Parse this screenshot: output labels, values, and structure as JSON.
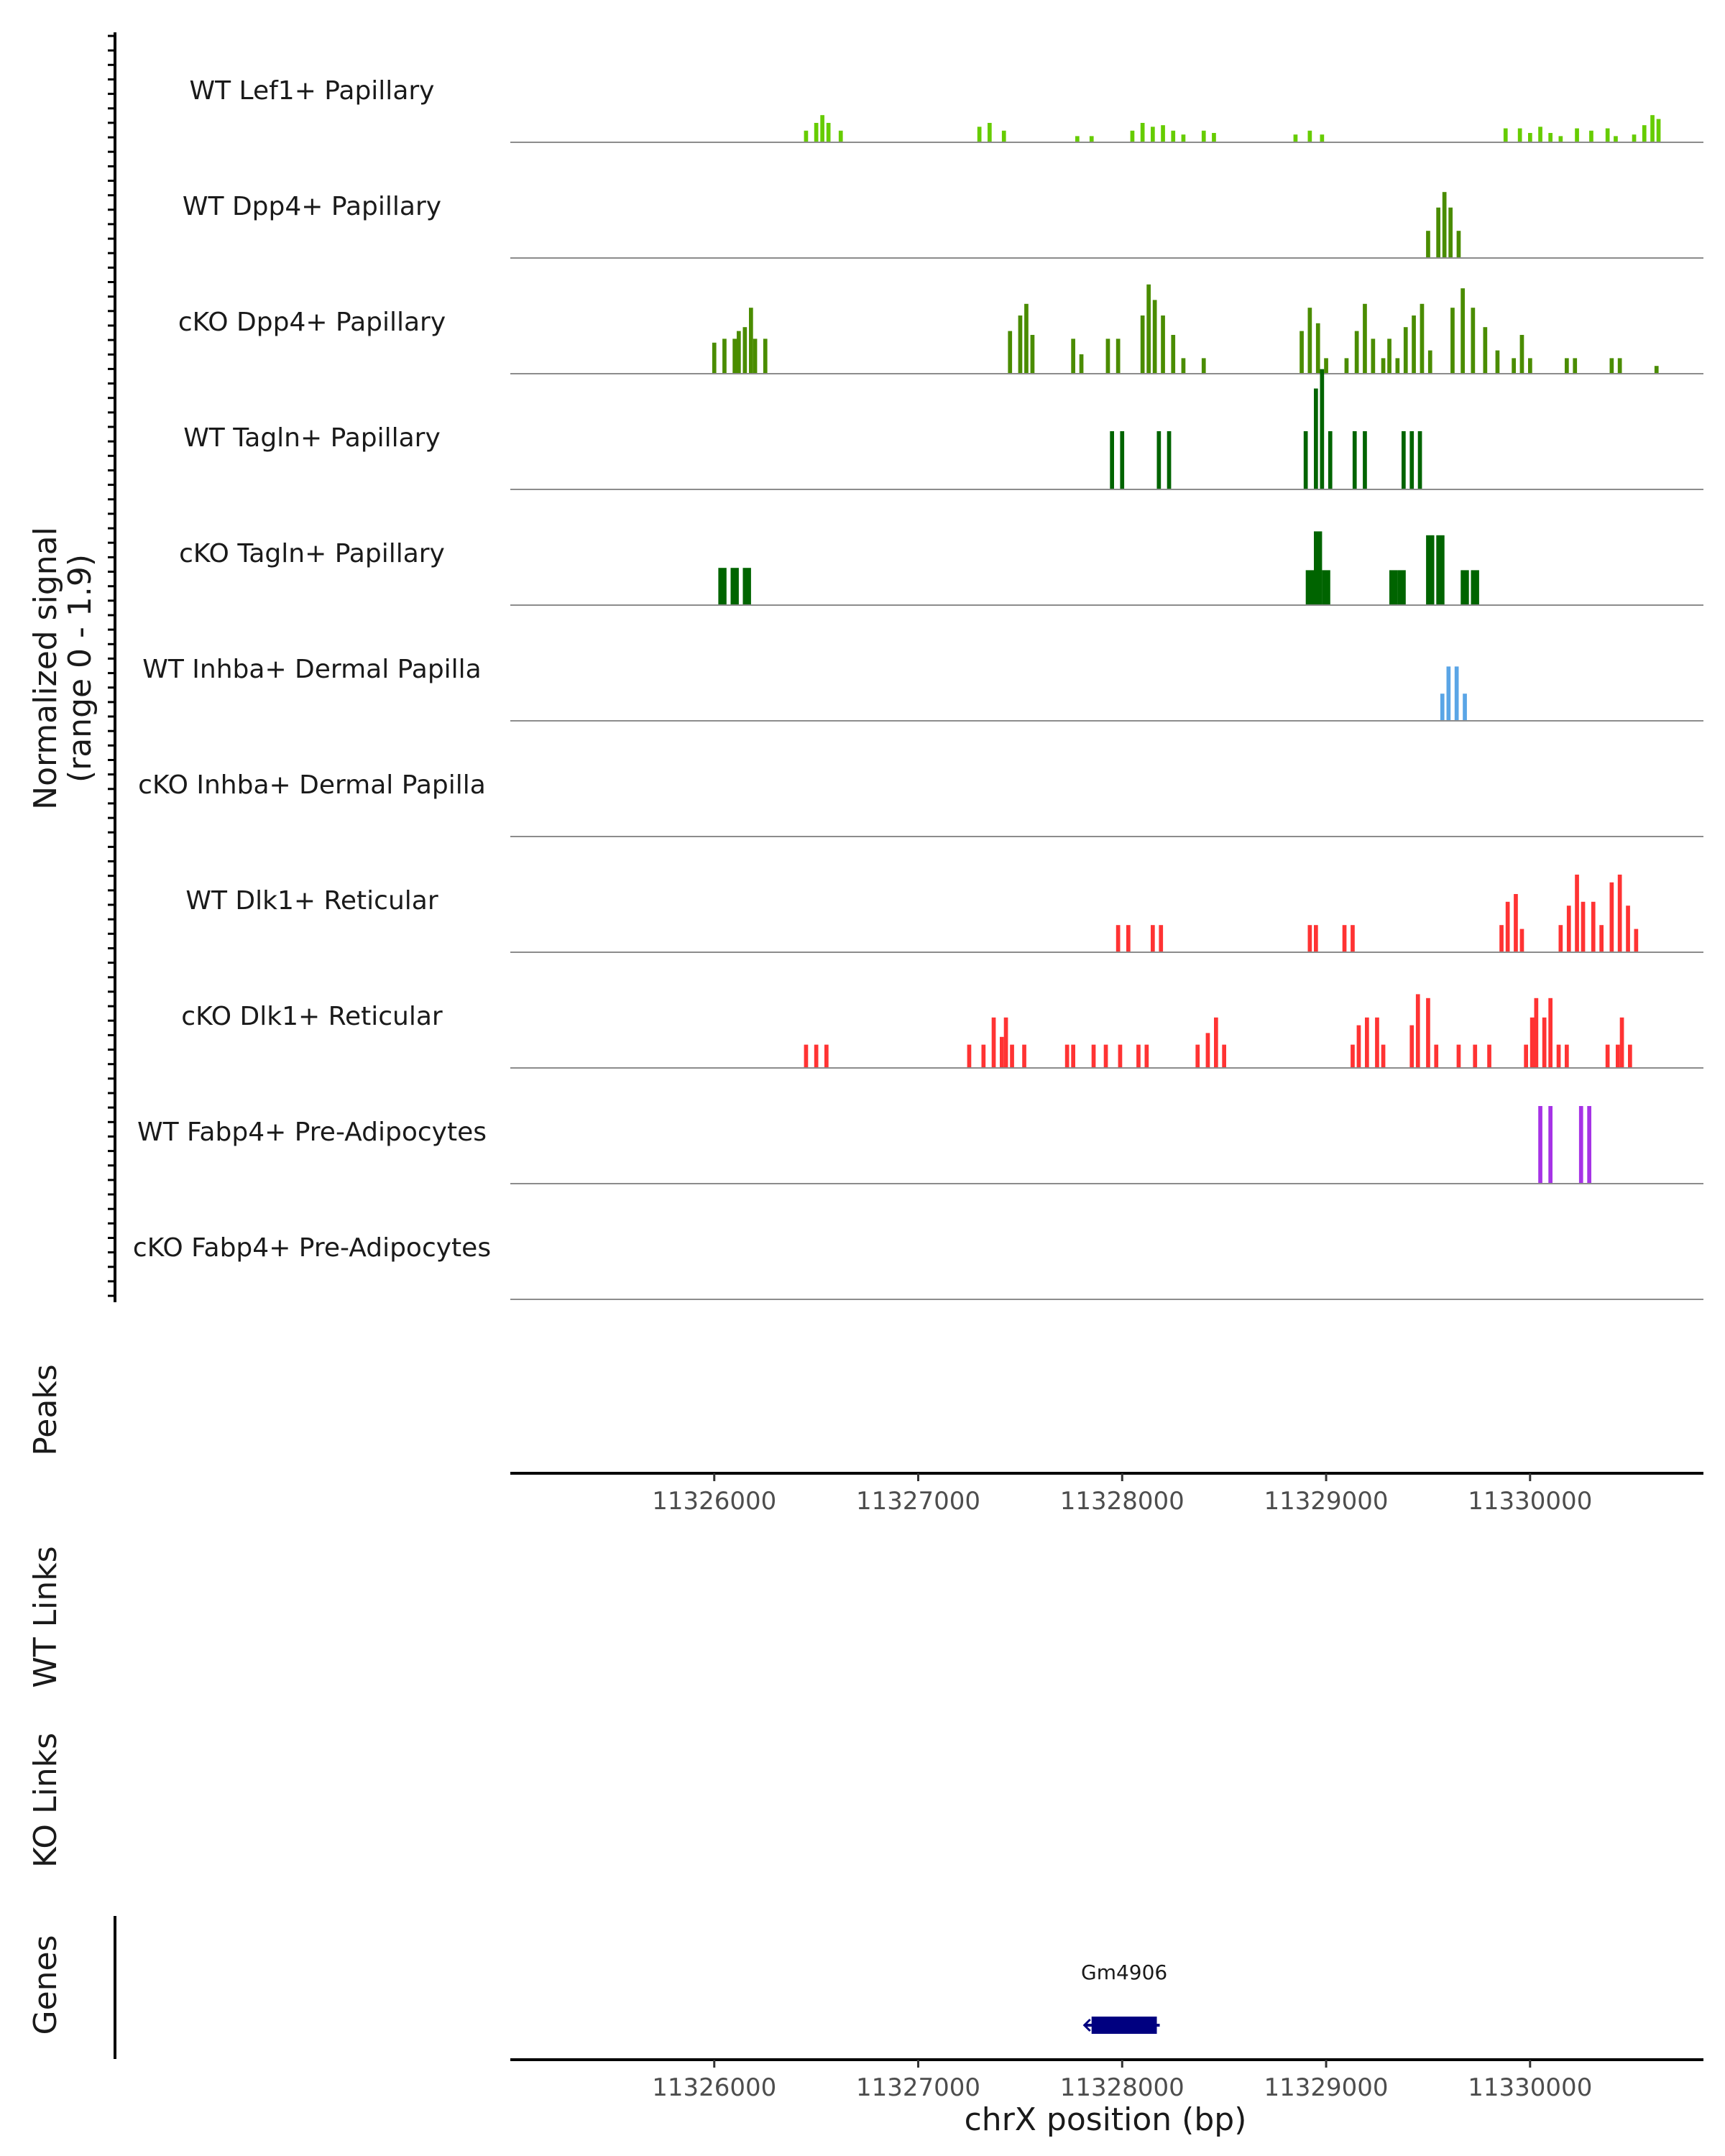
{
  "chart_data": {
    "type": "area",
    "title": "",
    "y_axis_title": "Normalized signal",
    "y_axis_subtitle": "(range 0 - 1.9)",
    "ylim": [
      0,
      1.9
    ],
    "chromosome": "chrX",
    "xlim": [
      11325000,
      11330850
    ],
    "x_ticks": [
      11326000,
      11327000,
      11328000,
      11329000,
      11330000
    ],
    "x_tick_labels": [
      "11326000",
      "11327000",
      "11328000",
      "11329000",
      "11330000"
    ],
    "xlabel": "chrX position (bp)",
    "section_labels": {
      "peaks": "Peaks",
      "wt_links": "WT Links",
      "ko_links": "KO Links",
      "genes": "Genes"
    },
    "series": [
      {
        "name": "WT Lef1+ Papillary",
        "color": "#66cc00",
        "bin": 20,
        "points": [
          [
            11326450,
            0.15
          ],
          [
            11326500,
            0.25
          ],
          [
            11326530,
            0.35
          ],
          [
            11326560,
            0.25
          ],
          [
            11326620,
            0.15
          ],
          [
            11327300,
            0.2
          ],
          [
            11327350,
            0.25
          ],
          [
            11327420,
            0.15
          ],
          [
            11327780,
            0.08
          ],
          [
            11327850,
            0.08
          ],
          [
            11328050,
            0.15
          ],
          [
            11328100,
            0.25
          ],
          [
            11328150,
            0.2
          ],
          [
            11328200,
            0.22
          ],
          [
            11328250,
            0.15
          ],
          [
            11328300,
            0.1
          ],
          [
            11328400,
            0.15
          ],
          [
            11328450,
            0.12
          ],
          [
            11328850,
            0.1
          ],
          [
            11328920,
            0.15
          ],
          [
            11328980,
            0.1
          ],
          [
            11329880,
            0.18
          ],
          [
            11329950,
            0.18
          ],
          [
            11330000,
            0.12
          ],
          [
            11330050,
            0.2
          ],
          [
            11330100,
            0.12
          ],
          [
            11330150,
            0.08
          ],
          [
            11330230,
            0.18
          ],
          [
            11330300,
            0.15
          ],
          [
            11330380,
            0.18
          ],
          [
            11330420,
            0.08
          ],
          [
            11330510,
            0.1
          ],
          [
            11330560,
            0.22
          ],
          [
            11330600,
            0.35
          ],
          [
            11330630,
            0.3
          ]
        ]
      },
      {
        "name": "WT Dpp4+ Papillary",
        "color": "#4a8c00",
        "bin": 20,
        "points": [
          [
            11329500,
            0.35
          ],
          [
            11329550,
            0.65
          ],
          [
            11329580,
            0.85
          ],
          [
            11329610,
            0.65
          ],
          [
            11329650,
            0.35
          ]
        ]
      },
      {
        "name": "cKO Dpp4+ Papillary",
        "color": "#4a8c00",
        "bin": 20,
        "points": [
          [
            11326000,
            0.4
          ],
          [
            11326050,
            0.45
          ],
          [
            11326100,
            0.45
          ],
          [
            11326120,
            0.55
          ],
          [
            11326150,
            0.6
          ],
          [
            11326180,
            0.85
          ],
          [
            11326200,
            0.45
          ],
          [
            11326250,
            0.45
          ],
          [
            11327450,
            0.55
          ],
          [
            11327500,
            0.75
          ],
          [
            11327530,
            0.9
          ],
          [
            11327560,
            0.5
          ],
          [
            11327760,
            0.45
          ],
          [
            11327800,
            0.25
          ],
          [
            11327930,
            0.45
          ],
          [
            11327980,
            0.45
          ],
          [
            11328100,
            0.75
          ],
          [
            11328130,
            1.15
          ],
          [
            11328160,
            0.95
          ],
          [
            11328200,
            0.75
          ],
          [
            11328250,
            0.5
          ],
          [
            11328300,
            0.2
          ],
          [
            11328400,
            0.2
          ],
          [
            11328880,
            0.55
          ],
          [
            11328920,
            0.85
          ],
          [
            11328960,
            0.65
          ],
          [
            11329000,
            0.2
          ],
          [
            11329100,
            0.2
          ],
          [
            11329150,
            0.55
          ],
          [
            11329190,
            0.9
          ],
          [
            11329230,
            0.45
          ],
          [
            11329280,
            0.2
          ],
          [
            11329310,
            0.45
          ],
          [
            11329350,
            0.2
          ],
          [
            11329390,
            0.6
          ],
          [
            11329430,
            0.75
          ],
          [
            11329470,
            0.9
          ],
          [
            11329510,
            0.3
          ],
          [
            11329620,
            0.85
          ],
          [
            11329670,
            1.1
          ],
          [
            11329720,
            0.85
          ],
          [
            11329780,
            0.6
          ],
          [
            11329840,
            0.3
          ],
          [
            11329920,
            0.2
          ],
          [
            11329960,
            0.5
          ],
          [
            11330000,
            0.2
          ],
          [
            11330180,
            0.2
          ],
          [
            11330220,
            0.2
          ],
          [
            11330400,
            0.2
          ],
          [
            11330440,
            0.2
          ],
          [
            11330620,
            0.1
          ]
        ]
      },
      {
        "name": "WT Tagln+ Papillary",
        "color": "#006400",
        "bin": 20,
        "points": [
          [
            11327950,
            0.75
          ],
          [
            11328000,
            0.75
          ],
          [
            11328180,
            0.75
          ],
          [
            11328230,
            0.75
          ],
          [
            11328900,
            0.75
          ],
          [
            11328950,
            1.3
          ],
          [
            11328980,
            1.55
          ],
          [
            11329020,
            0.75
          ],
          [
            11329140,
            0.75
          ],
          [
            11329190,
            0.75
          ],
          [
            11329380,
            0.75
          ],
          [
            11329420,
            0.75
          ],
          [
            11329460,
            0.75
          ]
        ]
      },
      {
        "name": "cKO Tagln+ Papillary",
        "color": "#006400",
        "bin": 40,
        "points": [
          [
            11326040,
            0.48
          ],
          [
            11326100,
            0.48
          ],
          [
            11326160,
            0.48
          ],
          [
            11328920,
            0.45
          ],
          [
            11328960,
            0.95
          ],
          [
            11329000,
            0.45
          ],
          [
            11329330,
            0.45
          ],
          [
            11329370,
            0.45
          ],
          [
            11329510,
            0.9
          ],
          [
            11329560,
            0.9
          ],
          [
            11329680,
            0.45
          ],
          [
            11329730,
            0.45
          ]
        ]
      },
      {
        "name": "WT Inhba+ Dermal Papilla",
        "color": "#5aa5e6",
        "bin": 20,
        "points": [
          [
            11329570,
            0.35
          ],
          [
            11329600,
            0.7
          ],
          [
            11329640,
            0.7
          ],
          [
            11329680,
            0.35
          ]
        ]
      },
      {
        "name": "cKO Inhba+ Dermal Papilla",
        "color": "#5aa5e6",
        "bin": 20,
        "points": []
      },
      {
        "name": "WT Dlk1+ Reticular",
        "color": "#ff3333",
        "bin": 20,
        "points": [
          [
            11327980,
            0.35
          ],
          [
            11328030,
            0.35
          ],
          [
            11328150,
            0.35
          ],
          [
            11328190,
            0.35
          ],
          [
            11328920,
            0.35
          ],
          [
            11328950,
            0.35
          ],
          [
            11329090,
            0.35
          ],
          [
            11329130,
            0.35
          ],
          [
            11329860,
            0.35
          ],
          [
            11329890,
            0.65
          ],
          [
            11329930,
            0.75
          ],
          [
            11329960,
            0.3
          ],
          [
            11330150,
            0.35
          ],
          [
            11330190,
            0.6
          ],
          [
            11330230,
            1.0
          ],
          [
            11330260,
            0.65
          ],
          [
            11330310,
            0.65
          ],
          [
            11330350,
            0.35
          ],
          [
            11330400,
            0.9
          ],
          [
            11330440,
            1.0
          ],
          [
            11330480,
            0.6
          ],
          [
            11330520,
            0.3
          ]
        ]
      },
      {
        "name": "cKO Dlk1+ Reticular",
        "color": "#ff3333",
        "bin": 20,
        "points": [
          [
            11326450,
            0.3
          ],
          [
            11326500,
            0.3
          ],
          [
            11326550,
            0.3
          ],
          [
            11327250,
            0.3
          ],
          [
            11327320,
            0.3
          ],
          [
            11327370,
            0.65
          ],
          [
            11327410,
            0.4
          ],
          [
            11327430,
            0.65
          ],
          [
            11327460,
            0.3
          ],
          [
            11327520,
            0.3
          ],
          [
            11327730,
            0.3
          ],
          [
            11327760,
            0.3
          ],
          [
            11327860,
            0.3
          ],
          [
            11327920,
            0.3
          ],
          [
            11327990,
            0.3
          ],
          [
            11328080,
            0.3
          ],
          [
            11328120,
            0.3
          ],
          [
            11328370,
            0.3
          ],
          [
            11328420,
            0.45
          ],
          [
            11328460,
            0.65
          ],
          [
            11328500,
            0.3
          ],
          [
            11329130,
            0.3
          ],
          [
            11329160,
            0.55
          ],
          [
            11329200,
            0.65
          ],
          [
            11329250,
            0.65
          ],
          [
            11329280,
            0.3
          ],
          [
            11329420,
            0.55
          ],
          [
            11329450,
            0.95
          ],
          [
            11329500,
            0.9
          ],
          [
            11329540,
            0.3
          ],
          [
            11329650,
            0.3
          ],
          [
            11329730,
            0.3
          ],
          [
            11329800,
            0.3
          ],
          [
            11329980,
            0.3
          ],
          [
            11330010,
            0.65
          ],
          [
            11330030,
            0.9
          ],
          [
            11330070,
            0.65
          ],
          [
            11330100,
            0.9
          ],
          [
            11330140,
            0.3
          ],
          [
            11330180,
            0.3
          ],
          [
            11330380,
            0.3
          ],
          [
            11330430,
            0.3
          ],
          [
            11330450,
            0.65
          ],
          [
            11330490,
            0.3
          ]
        ]
      },
      {
        "name": "WT Fabp4+ Pre-Adipocytes",
        "color": "#a633e6",
        "bin": 20,
        "points": [
          [
            11330050,
            1.0
          ],
          [
            11330100,
            1.0
          ],
          [
            11330250,
            1.0
          ],
          [
            11330290,
            1.0
          ]
        ]
      },
      {
        "name": "cKO Fabp4+ Pre-Adipocytes",
        "color": "#a633e6",
        "bin": 20,
        "points": []
      }
    ],
    "genes": [
      {
        "name": "Gm4906",
        "start": 11327850,
        "end": 11328170,
        "strand": "-",
        "color": "#000080"
      }
    ]
  }
}
